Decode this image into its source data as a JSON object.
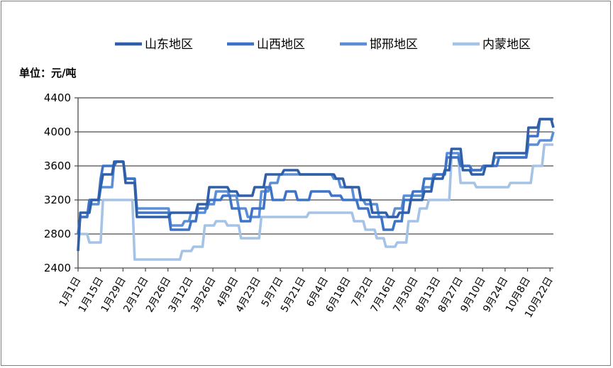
{
  "chart_data": {
    "type": "line",
    "unit_label": "单位：元/吨",
    "ylim": [
      2400,
      4400
    ],
    "y_ticks": [
      2400,
      2800,
      3200,
      3600,
      4000,
      4400
    ],
    "grid": true,
    "legend_position": "top",
    "x_tick_labels": [
      "1月1日",
      "1月15日",
      "1月29日",
      "2月12日",
      "2月26日",
      "3月12日",
      "3月26日",
      "4月9日",
      "4月23日",
      "5月7日",
      "5月21日",
      "6月4日",
      "6月18日",
      "7月2日",
      "7月16日",
      "7月30日",
      "8月13日",
      "8月27日",
      "9月10日",
      "9月24日",
      "10月8日",
      "10月22日"
    ],
    "series": [
      {
        "name": "山东地区",
        "color": "#2f5fa8",
        "points": [
          [
            0,
            2600
          ],
          [
            1,
            3050
          ],
          [
            5,
            3050
          ],
          [
            6,
            3200
          ],
          [
            9,
            3200
          ],
          [
            11,
            3500
          ],
          [
            15,
            3500
          ],
          [
            16,
            3650
          ],
          [
            20,
            3650
          ],
          [
            21,
            3400
          ],
          [
            25,
            3400
          ],
          [
            26,
            3000
          ],
          [
            40,
            3000
          ],
          [
            41,
            3050
          ],
          [
            52,
            3050
          ],
          [
            53,
            3150
          ],
          [
            57,
            3150
          ],
          [
            58,
            3350
          ],
          [
            66,
            3350
          ],
          [
            67,
            3300
          ],
          [
            70,
            3300
          ],
          [
            71,
            3250
          ],
          [
            77,
            3250
          ],
          [
            78,
            3350
          ],
          [
            82,
            3350
          ],
          [
            83,
            3500
          ],
          [
            90,
            3500
          ],
          [
            91,
            3550
          ],
          [
            97,
            3550
          ],
          [
            98,
            3500
          ],
          [
            107,
            3500
          ],
          [
            108,
            3500
          ],
          [
            113,
            3500
          ],
          [
            114,
            3450
          ],
          [
            117,
            3450
          ],
          [
            118,
            3350
          ],
          [
            124,
            3350
          ],
          [
            125,
            3200
          ],
          [
            129,
            3200
          ],
          [
            130,
            3050
          ],
          [
            136,
            3050
          ],
          [
            137,
            3000
          ],
          [
            141,
            3000
          ],
          [
            142,
            3050
          ],
          [
            146,
            3050
          ],
          [
            147,
            3200
          ],
          [
            152,
            3200
          ],
          [
            153,
            3300
          ],
          [
            156,
            3300
          ],
          [
            157,
            3450
          ],
          [
            161,
            3450
          ],
          [
            162,
            3550
          ],
          [
            164,
            3550
          ],
          [
            165,
            3800
          ],
          [
            169,
            3800
          ],
          [
            170,
            3550
          ],
          [
            173,
            3550
          ],
          [
            174,
            3500
          ],
          [
            179,
            3500
          ],
          [
            180,
            3600
          ],
          [
            183,
            3600
          ],
          [
            184,
            3750
          ],
          [
            198,
            3750
          ],
          [
            199,
            4050
          ],
          [
            203,
            4050
          ],
          [
            204,
            4150
          ],
          [
            209,
            4150
          ],
          [
            210,
            4050
          ]
        ]
      },
      {
        "name": "山西地区",
        "color": "#3d74c8",
        "points": [
          [
            0,
            2800
          ],
          [
            1,
            3000
          ],
          [
            4,
            3000
          ],
          [
            5,
            3200
          ],
          [
            9,
            3200
          ],
          [
            10,
            3450
          ],
          [
            11,
            3600
          ],
          [
            16,
            3600
          ],
          [
            17,
            3650
          ],
          [
            20,
            3650
          ],
          [
            21,
            3450
          ],
          [
            25,
            3450
          ],
          [
            26,
            3050
          ],
          [
            40,
            3050
          ],
          [
            41,
            2850
          ],
          [
            49,
            2850
          ],
          [
            50,
            2950
          ],
          [
            52,
            2950
          ],
          [
            53,
            3100
          ],
          [
            57,
            3100
          ],
          [
            58,
            3200
          ],
          [
            63,
            3200
          ],
          [
            64,
            3250
          ],
          [
            67,
            3250
          ],
          [
            68,
            3100
          ],
          [
            71,
            3100
          ],
          [
            72,
            2950
          ],
          [
            76,
            2950
          ],
          [
            77,
            3100
          ],
          [
            82,
            3100
          ],
          [
            83,
            3350
          ],
          [
            85,
            3350
          ],
          [
            86,
            3200
          ],
          [
            91,
            3200
          ],
          [
            92,
            3300
          ],
          [
            96,
            3300
          ],
          [
            97,
            3200
          ],
          [
            102,
            3200
          ],
          [
            103,
            3300
          ],
          [
            111,
            3300
          ],
          [
            112,
            3250
          ],
          [
            116,
            3250
          ],
          [
            117,
            3200
          ],
          [
            123,
            3200
          ],
          [
            124,
            3100
          ],
          [
            128,
            3100
          ],
          [
            129,
            3000
          ],
          [
            134,
            3000
          ],
          [
            135,
            2850
          ],
          [
            139,
            2850
          ],
          [
            140,
            2950
          ],
          [
            143,
            2950
          ],
          [
            144,
            3200
          ],
          [
            147,
            3200
          ],
          [
            148,
            3300
          ],
          [
            152,
            3300
          ],
          [
            153,
            3450
          ],
          [
            157,
            3450
          ],
          [
            158,
            3500
          ],
          [
            162,
            3500
          ],
          [
            163,
            3700
          ],
          [
            168,
            3700
          ],
          [
            169,
            3600
          ],
          [
            173,
            3600
          ],
          [
            174,
            3550
          ],
          [
            178,
            3550
          ],
          [
            179,
            3600
          ],
          [
            185,
            3600
          ],
          [
            186,
            3700
          ],
          [
            198,
            3700
          ],
          [
            199,
            3950
          ],
          [
            203,
            3950
          ],
          [
            204,
            4150
          ],
          [
            210,
            4150
          ]
        ]
      },
      {
        "name": "邯邢地区",
        "color": "#5a8fd6",
        "points": [
          [
            0,
            2800
          ],
          [
            1,
            3000
          ],
          [
            4,
            3000
          ],
          [
            5,
            3150
          ],
          [
            9,
            3150
          ],
          [
            10,
            3350
          ],
          [
            15,
            3350
          ],
          [
            16,
            3650
          ],
          [
            20,
            3650
          ],
          [
            21,
            3450
          ],
          [
            25,
            3450
          ],
          [
            26,
            3100
          ],
          [
            40,
            3100
          ],
          [
            41,
            2900
          ],
          [
            46,
            2900
          ],
          [
            47,
            2950
          ],
          [
            49,
            2950
          ],
          [
            50,
            3050
          ],
          [
            56,
            3050
          ],
          [
            57,
            3150
          ],
          [
            60,
            3150
          ],
          [
            61,
            3300
          ],
          [
            66,
            3300
          ],
          [
            67,
            3250
          ],
          [
            70,
            3250
          ],
          [
            71,
            3100
          ],
          [
            74,
            3100
          ],
          [
            75,
            3000
          ],
          [
            80,
            3000
          ],
          [
            81,
            3300
          ],
          [
            84,
            3300
          ],
          [
            85,
            3400
          ],
          [
            88,
            3400
          ],
          [
            89,
            3500
          ],
          [
            98,
            3500
          ],
          [
            99,
            3500
          ],
          [
            112,
            3500
          ],
          [
            113,
            3450
          ],
          [
            115,
            3450
          ],
          [
            116,
            3350
          ],
          [
            121,
            3350
          ],
          [
            122,
            3200
          ],
          [
            126,
            3200
          ],
          [
            127,
            3150
          ],
          [
            132,
            3150
          ],
          [
            133,
            3000
          ],
          [
            139,
            3000
          ],
          [
            140,
            3100
          ],
          [
            143,
            3100
          ],
          [
            144,
            3250
          ],
          [
            152,
            3250
          ],
          [
            153,
            3350
          ],
          [
            156,
            3350
          ],
          [
            157,
            3500
          ],
          [
            162,
            3500
          ],
          [
            163,
            3750
          ],
          [
            168,
            3750
          ],
          [
            169,
            3600
          ],
          [
            173,
            3600
          ],
          [
            174,
            3550
          ],
          [
            178,
            3550
          ],
          [
            179,
            3600
          ],
          [
            183,
            3600
          ],
          [
            184,
            3700
          ],
          [
            198,
            3700
          ],
          [
            199,
            3850
          ],
          [
            203,
            3850
          ],
          [
            204,
            3900
          ],
          [
            209,
            3900
          ],
          [
            210,
            4000
          ]
        ]
      },
      {
        "name": "内蒙地区",
        "color": "#a4c3e6",
        "points": [
          [
            0,
            2800
          ],
          [
            4,
            2800
          ],
          [
            5,
            2700
          ],
          [
            10,
            2700
          ],
          [
            11,
            3200
          ],
          [
            24,
            3200
          ],
          [
            25,
            2500
          ],
          [
            45,
            2500
          ],
          [
            46,
            2600
          ],
          [
            50,
            2600
          ],
          [
            51,
            2650
          ],
          [
            55,
            2650
          ],
          [
            56,
            2900
          ],
          [
            60,
            2900
          ],
          [
            61,
            2950
          ],
          [
            65,
            2950
          ],
          [
            66,
            2900
          ],
          [
            71,
            2900
          ],
          [
            72,
            2750
          ],
          [
            80,
            2750
          ],
          [
            81,
            3000
          ],
          [
            101,
            3000
          ],
          [
            102,
            3050
          ],
          [
            121,
            3050
          ],
          [
            122,
            2950
          ],
          [
            126,
            2950
          ],
          [
            127,
            2850
          ],
          [
            131,
            2850
          ],
          [
            132,
            2750
          ],
          [
            135,
            2750
          ],
          [
            136,
            2650
          ],
          [
            140,
            2650
          ],
          [
            141,
            2700
          ],
          [
            145,
            2700
          ],
          [
            146,
            2950
          ],
          [
            150,
            2950
          ],
          [
            151,
            3100
          ],
          [
            154,
            3100
          ],
          [
            155,
            3200
          ],
          [
            164,
            3200
          ],
          [
            165,
            3700
          ],
          [
            168,
            3700
          ],
          [
            169,
            3400
          ],
          [
            175,
            3400
          ],
          [
            176,
            3350
          ],
          [
            190,
            3350
          ],
          [
            191,
            3400
          ],
          [
            200,
            3400
          ],
          [
            201,
            3600
          ],
          [
            205,
            3600
          ],
          [
            206,
            3850
          ],
          [
            210,
            3850
          ]
        ]
      }
    ]
  }
}
